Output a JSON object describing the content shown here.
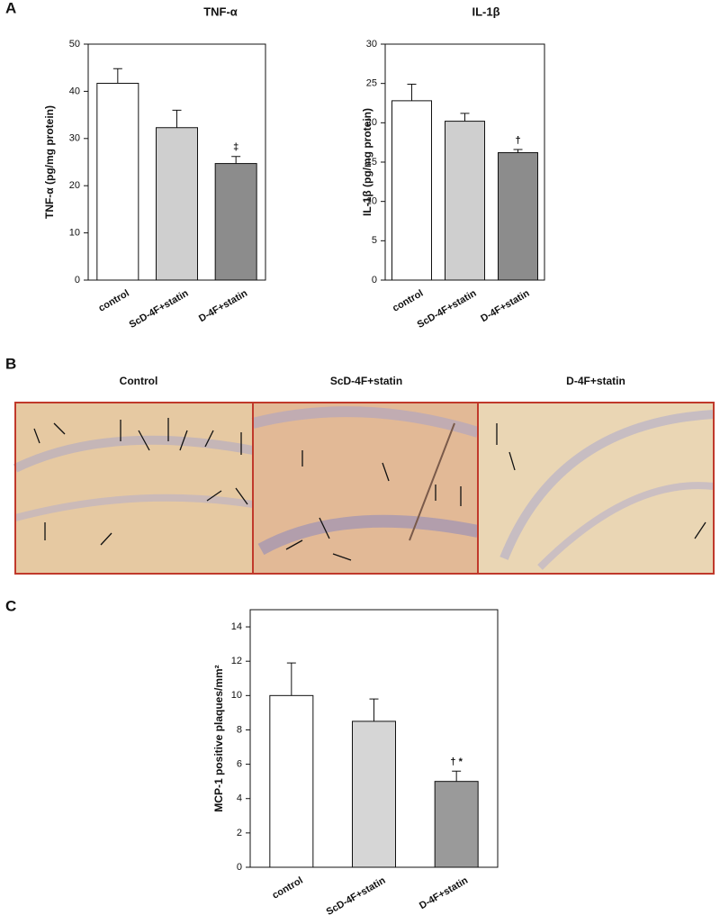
{
  "figure": {
    "panel_labels": [
      "A",
      "B",
      "C"
    ]
  },
  "micrographs": {
    "titles": [
      "Control",
      "ScD-4F+statin",
      "D-4F+statin"
    ]
  },
  "chart_data": [
    {
      "type": "bar",
      "title": "TNF-α",
      "y_label": "TNF-α (pg/mg protein)",
      "categories": [
        "control",
        "ScD-4F+statin",
        "D-4F+statin"
      ],
      "values": [
        41.7,
        32.3,
        24.7
      ],
      "errors": [
        3.1,
        3.7,
        1.5
      ],
      "annotations": [
        null,
        null,
        "‡"
      ],
      "colors": [
        "#ffffff",
        "#cfcfcf",
        "#8c8c8c"
      ],
      "ylim": [
        0,
        50
      ],
      "yticks": [
        0,
        10,
        20,
        30,
        40,
        50
      ]
    },
    {
      "type": "bar",
      "title": "IL-1β",
      "y_label": "IL-1β (pg/mg protein)",
      "categories": [
        "control",
        "ScD-4F+statin",
        "D-4F+statin"
      ],
      "values": [
        22.8,
        20.2,
        16.2
      ],
      "errors": [
        2.1,
        1.0,
        0.4
      ],
      "annotations": [
        null,
        null,
        "†"
      ],
      "colors": [
        "#ffffff",
        "#cfcfcf",
        "#8c8c8c"
      ],
      "ylim": [
        0,
        30
      ],
      "yticks": [
        0,
        5,
        10,
        15,
        20,
        25,
        30
      ]
    },
    {
      "type": "bar",
      "y_label": "MCP-1 positive plaques/mm²",
      "categories": [
        "control",
        "ScD-4F+statin",
        "D-4F+statin"
      ],
      "values": [
        10.0,
        8.5,
        5.0
      ],
      "errors": [
        1.9,
        1.3,
        0.6
      ],
      "annotations": [
        null,
        null,
        "† *"
      ],
      "colors": [
        "#ffffff",
        "#d6d6d6",
        "#9a9a9a"
      ],
      "ylim": [
        0,
        15
      ],
      "yticks": [
        0,
        2,
        4,
        6,
        8,
        10,
        12,
        14
      ]
    }
  ]
}
